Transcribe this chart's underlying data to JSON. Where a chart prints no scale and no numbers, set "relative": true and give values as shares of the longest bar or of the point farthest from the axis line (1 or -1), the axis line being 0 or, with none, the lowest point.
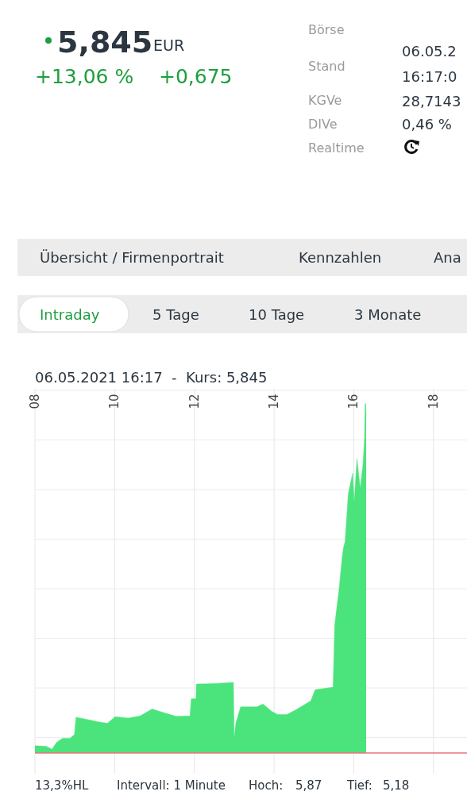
{
  "chart_data": {
    "type": "area",
    "title": "06.05.2021 16:17  -  Kurs: 5,845",
    "relative": true,
    "color": "#4be47c",
    "x": [
      8.0,
      8.28,
      8.43,
      8.54,
      8.69,
      8.88,
      8.99,
      9.03,
      9.22,
      9.59,
      9.82,
      10.01,
      10.34,
      10.64,
      10.94,
      11.24,
      11.54,
      11.89,
      11.92,
      12.04,
      12.05,
      12.59,
      12.98,
      13.0,
      13.04,
      13.16,
      13.57,
      13.72,
      13.94,
      14.09,
      14.32,
      14.54,
      14.92,
      15.03,
      15.48,
      15.52,
      15.63,
      15.71,
      15.74,
      15.78,
      15.86,
      15.97,
      16.01,
      16.08,
      16.16,
      16.23,
      16.27,
      16.28,
      16.3,
      16.31
    ],
    "values": [
      0.021,
      0.019,
      0.011,
      0.03,
      0.042,
      0.042,
      0.053,
      0.102,
      0.098,
      0.089,
      0.085,
      0.104,
      0.1,
      0.106,
      0.126,
      0.115,
      0.105,
      0.106,
      0.155,
      0.155,
      0.197,
      0.199,
      0.202,
      0.042,
      0.085,
      0.132,
      0.132,
      0.14,
      0.119,
      0.11,
      0.11,
      0.123,
      0.149,
      0.181,
      0.188,
      0.366,
      0.468,
      0.562,
      0.587,
      0.604,
      0.74,
      0.8,
      0.718,
      0.842,
      0.757,
      0.825,
      0.902,
      0.995,
      1,
      0.961
    ],
    "xlim": [
      8,
      18.84
    ],
    "xticks": [
      {
        "value": 8,
        "label": "08"
      },
      {
        "value": 10,
        "label": "10"
      },
      {
        "value": 12,
        "label": "12"
      },
      {
        "value": 14,
        "label": "14"
      },
      {
        "value": 16,
        "label": "16"
      },
      {
        "value": 18,
        "label": "18"
      }
    ],
    "grid": true,
    "annotations": [
      "5,845",
      "EUR",
      "+13,06 %",
      "+0,675",
      "Börse",
      "Stand",
      "06.05.2",
      "16:17:0",
      "KGVe",
      "28,7143",
      "DIVe",
      "0,46 %",
      "Realtime",
      "Übersicht / Firmenportrait",
      "Kennzahlen",
      "Ana",
      "Intraday",
      "5 Tage",
      "10 Tage",
      "3 Monate",
      "13,3%HL",
      "Intervall: 1 Minute",
      "Hoch:",
      "5,87",
      "Tief:",
      "5,18"
    ]
  }
}
